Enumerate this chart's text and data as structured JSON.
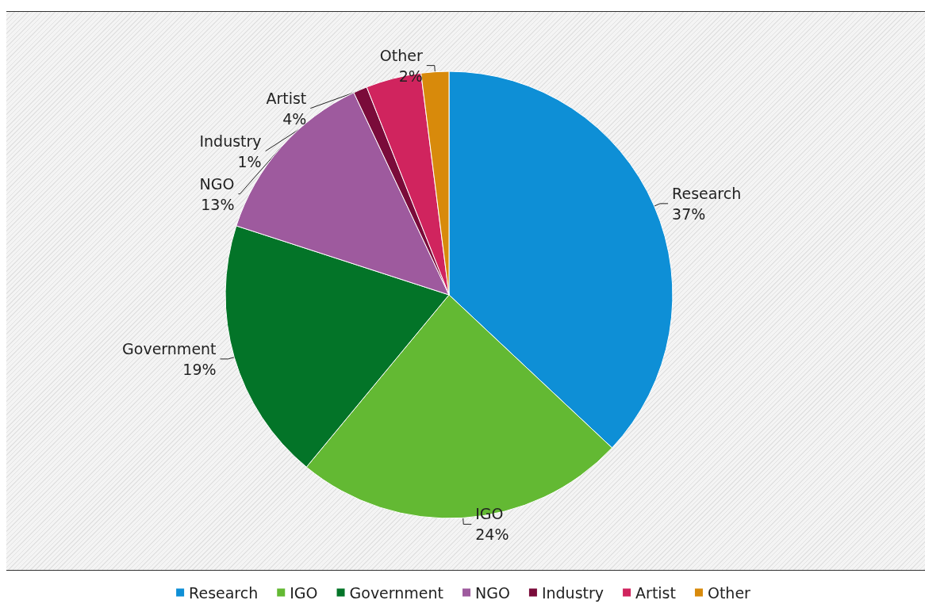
{
  "chart_data": {
    "type": "pie",
    "categories": [
      "Research",
      "IGO",
      "Government",
      "NGO",
      "Industry",
      "Artist",
      "Other"
    ],
    "values": [
      37,
      24,
      19,
      13,
      1,
      4,
      2
    ],
    "value_labels": [
      "37%",
      "24%",
      "19%",
      "13%",
      "1%",
      "4%",
      "2%"
    ],
    "colors": [
      "#0e8fd6",
      "#63b933",
      "#037428",
      "#9e5a9e",
      "#7a0b3a",
      "#d0245e",
      "#d88a0b"
    ],
    "legend": "bottom"
  }
}
